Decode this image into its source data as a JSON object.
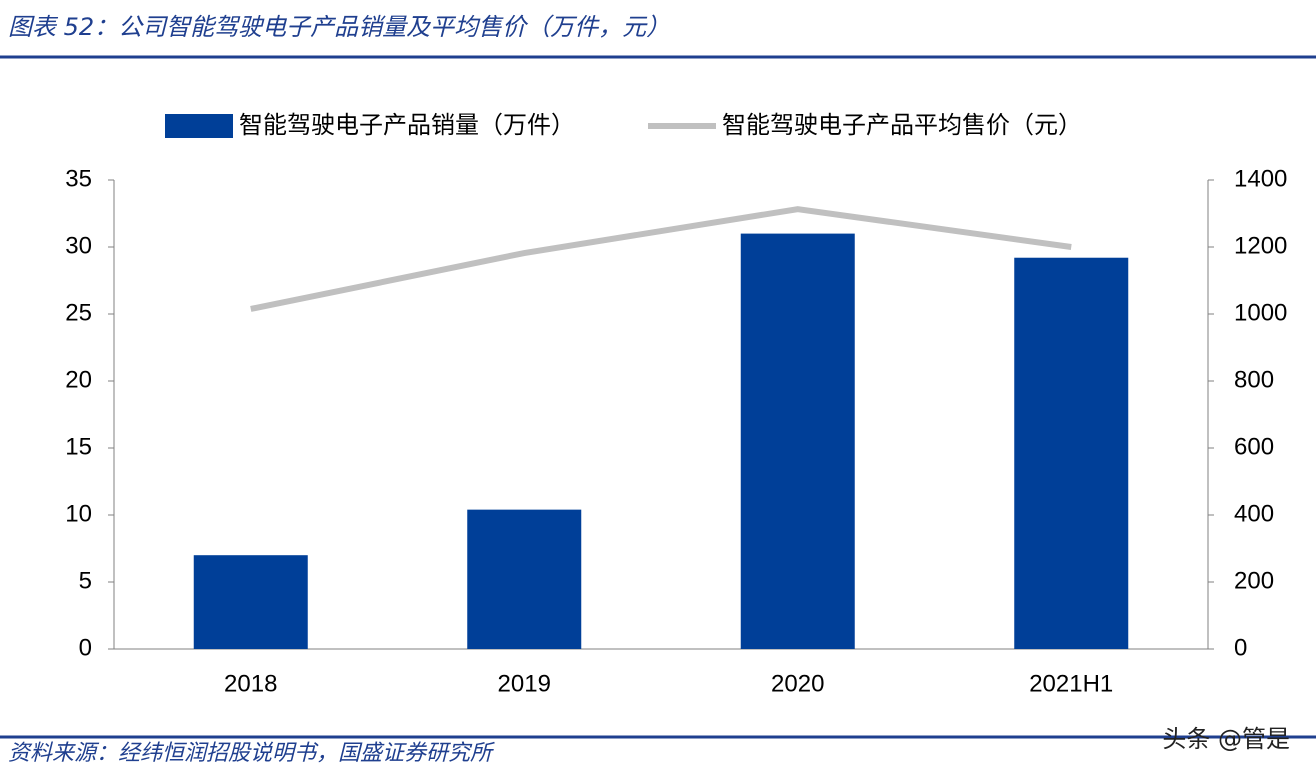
{
  "chart_data": {
    "type": "bar-line",
    "title": "图表 52：公司智能驾驶电子产品销量及平均售价（万件，元）",
    "source": "资料来源：经纬恒润招股说明书，国盛证券研究所",
    "watermark": "头条 @管是",
    "categories": [
      "2018",
      "2019",
      "2020",
      "2021H1"
    ],
    "series": [
      {
        "name": "智能驾驶电子产品销量（万件）",
        "type": "bar",
        "color": "#003f98",
        "values": [
          7.0,
          10.4,
          31.0,
          29.2
        ]
      },
      {
        "name": "智能驾驶电子产品平均售价（元）",
        "type": "line",
        "axis": "y2",
        "color": "#c0c0c0",
        "values": [
          1015,
          1182,
          1313,
          1200
        ]
      }
    ],
    "ylim": [
      0,
      35
    ],
    "yticks": [
      0,
      5,
      10,
      15,
      20,
      25,
      30,
      35
    ],
    "y2lim": [
      0,
      1400
    ],
    "y2ticks": [
      0,
      200,
      400,
      600,
      800,
      1000,
      1200,
      1400
    ],
    "legend": "top"
  }
}
